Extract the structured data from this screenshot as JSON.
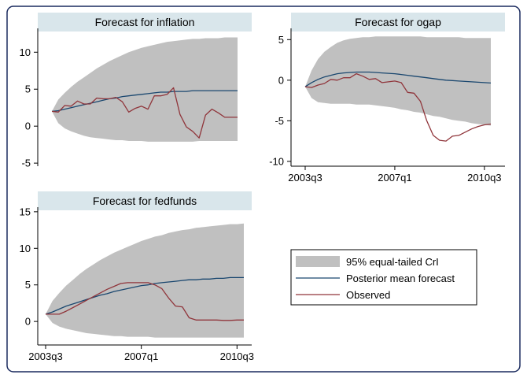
{
  "colors": {
    "frame": "#1a2a5e",
    "band": "#c0c0c0",
    "mean": "#1a476f",
    "observed": "#90353b",
    "title_bg": "#d9e6eb"
  },
  "chart_data": [
    {
      "type": "area",
      "title": "Forecast for inflation",
      "xlabel": "",
      "ylabel": "",
      "grid": false,
      "x_ticks": [],
      "y_ticks": [
        "10",
        "5",
        "0",
        "-5"
      ],
      "ylim": [
        -5.2,
        12.8
      ],
      "x": [
        "2003q3",
        "2003q4",
        "2004q1",
        "2004q2",
        "2004q3",
        "2004q4",
        "2005q1",
        "2005q2",
        "2005q3",
        "2005q4",
        "2006q1",
        "2006q2",
        "2006q3",
        "2006q4",
        "2007q1",
        "2007q2",
        "2007q3",
        "2007q4",
        "2008q1",
        "2008q2",
        "2008q3",
        "2008q4",
        "2009q1",
        "2009q2",
        "2009q3",
        "2009q4",
        "2010q1",
        "2010q2",
        "2010q3",
        "2010q4"
      ],
      "series": [
        {
          "name": "95% equal-tailed CrI",
          "type": "band",
          "lower": [
            2.0,
            0.4,
            -0.3,
            -0.7,
            -1.0,
            -1.3,
            -1.5,
            -1.6,
            -1.7,
            -1.8,
            -1.9,
            -1.9,
            -2.0,
            -2.0,
            -2.0,
            -2.1,
            -2.1,
            -2.1,
            -2.1,
            -2.1,
            -2.1,
            -2.1,
            -2.1,
            -2.0,
            -2.0,
            -2.0,
            -2.0,
            -2.0,
            -2.0,
            -2.0
          ],
          "upper": [
            2.0,
            3.6,
            4.5,
            5.3,
            6.0,
            6.6,
            7.2,
            7.8,
            8.3,
            8.8,
            9.2,
            9.6,
            10.0,
            10.3,
            10.6,
            10.8,
            11.0,
            11.2,
            11.4,
            11.5,
            11.6,
            11.7,
            11.8,
            11.8,
            11.9,
            11.9,
            11.9,
            12.0,
            12.0,
            12.0
          ]
        },
        {
          "name": "Posterior mean forecast",
          "type": "line",
          "values": [
            2.0,
            2.1,
            2.3,
            2.5,
            2.7,
            2.9,
            3.1,
            3.3,
            3.5,
            3.7,
            3.8,
            4.0,
            4.1,
            4.2,
            4.3,
            4.4,
            4.5,
            4.6,
            4.6,
            4.7,
            4.7,
            4.7,
            4.8,
            4.8,
            4.8,
            4.8,
            4.8,
            4.8,
            4.8,
            4.8
          ]
        },
        {
          "name": "Observed",
          "type": "line",
          "values": [
            2.0,
            1.9,
            2.8,
            2.7,
            3.4,
            3.0,
            3.0,
            3.8,
            3.7,
            3.7,
            3.9,
            3.3,
            1.9,
            2.4,
            2.7,
            2.3,
            4.1,
            4.1,
            4.3,
            5.2,
            1.6,
            -0.1,
            -0.7,
            -1.6,
            1.5,
            2.3,
            1.8,
            1.2,
            1.2,
            1.2
          ]
        }
      ]
    },
    {
      "type": "area",
      "title": "Forecast for ogap",
      "xlabel": "",
      "ylabel": "",
      "grid": false,
      "x_ticks": [
        "2003q3",
        "2007q1",
        "2010q3"
      ],
      "y_ticks": [
        "5",
        "0",
        "-5",
        "-10"
      ],
      "ylim": [
        -10.4,
        6.0
      ],
      "x": [
        "2003q3",
        "2003q4",
        "2004q1",
        "2004q2",
        "2004q3",
        "2004q4",
        "2005q1",
        "2005q2",
        "2005q3",
        "2005q4",
        "2006q1",
        "2006q2",
        "2006q3",
        "2006q4",
        "2007q1",
        "2007q2",
        "2007q3",
        "2007q4",
        "2008q1",
        "2008q2",
        "2008q3",
        "2008q4",
        "2009q1",
        "2009q2",
        "2009q3",
        "2009q4",
        "2010q1",
        "2010q2",
        "2010q3",
        "2010q4"
      ],
      "series": [
        {
          "name": "95% equal-tailed CrI",
          "type": "band",
          "lower": [
            -0.8,
            -2.2,
            -2.7,
            -2.8,
            -2.9,
            -2.9,
            -2.9,
            -2.9,
            -3.0,
            -3.0,
            -3.0,
            -3.1,
            -3.2,
            -3.3,
            -3.4,
            -3.6,
            -3.7,
            -3.9,
            -4.0,
            -4.2,
            -4.4,
            -4.5,
            -4.7,
            -4.9,
            -5.0,
            -5.1,
            -5.3,
            -5.4,
            -5.5,
            -5.6
          ],
          "upper": [
            -0.8,
            1.2,
            2.6,
            3.5,
            4.1,
            4.6,
            4.9,
            5.1,
            5.2,
            5.3,
            5.3,
            5.4,
            5.4,
            5.4,
            5.4,
            5.4,
            5.4,
            5.4,
            5.4,
            5.3,
            5.3,
            5.3,
            5.3,
            5.3,
            5.3,
            5.2,
            5.2,
            5.2,
            5.2,
            5.2
          ]
        },
        {
          "name": "Posterior mean forecast",
          "type": "line",
          "values": [
            -0.8,
            -0.3,
            0.1,
            0.4,
            0.6,
            0.8,
            0.9,
            0.95,
            1.0,
            1.0,
            1.0,
            0.95,
            0.9,
            0.85,
            0.8,
            0.7,
            0.6,
            0.5,
            0.4,
            0.3,
            0.2,
            0.1,
            0.0,
            -0.05,
            -0.1,
            -0.15,
            -0.2,
            -0.25,
            -0.3,
            -0.35
          ]
        },
        {
          "name": "Observed",
          "type": "line",
          "values": [
            -0.8,
            -0.9,
            -0.6,
            -0.4,
            0.1,
            0.0,
            0.3,
            0.3,
            0.8,
            0.5,
            0.1,
            0.2,
            -0.3,
            -0.2,
            -0.1,
            -0.3,
            -1.5,
            -1.6,
            -2.6,
            -5.0,
            -6.8,
            -7.4,
            -7.5,
            -6.9,
            -6.8,
            -6.4,
            -6.0,
            -5.7,
            -5.5,
            -5.4
          ]
        }
      ]
    },
    {
      "type": "area",
      "title": "Forecast for fedfunds",
      "xlabel": "",
      "ylabel": "",
      "grid": false,
      "x_ticks": [
        "2003q3",
        "2007q1",
        "2010q3"
      ],
      "y_ticks": [
        "15",
        "10",
        "5",
        "0"
      ],
      "ylim": [
        -3.0,
        15.2
      ],
      "x": [
        "2003q3",
        "2003q4",
        "2004q1",
        "2004q2",
        "2004q3",
        "2004q4",
        "2005q1",
        "2005q2",
        "2005q3",
        "2005q4",
        "2006q1",
        "2006q2",
        "2006q3",
        "2006q4",
        "2007q1",
        "2007q2",
        "2007q3",
        "2007q4",
        "2008q1",
        "2008q2",
        "2008q3",
        "2008q4",
        "2009q1",
        "2009q2",
        "2009q3",
        "2009q4",
        "2010q1",
        "2010q2",
        "2010q3",
        "2010q4"
      ],
      "series": [
        {
          "name": "95% equal-tailed CrI",
          "type": "band",
          "lower": [
            1.0,
            -0.2,
            -0.7,
            -1.0,
            -1.2,
            -1.4,
            -1.6,
            -1.7,
            -1.8,
            -1.9,
            -2.0,
            -2.0,
            -2.1,
            -2.1,
            -2.1,
            -2.1,
            -2.2,
            -2.2,
            -2.2,
            -2.2,
            -2.2,
            -2.2,
            -2.2,
            -2.2,
            -2.2,
            -2.2,
            -2.2,
            -2.2,
            -2.2,
            -2.2
          ],
          "upper": [
            1.0,
            2.8,
            3.9,
            4.9,
            5.7,
            6.5,
            7.2,
            7.8,
            8.4,
            8.9,
            9.4,
            9.8,
            10.2,
            10.6,
            11.0,
            11.3,
            11.6,
            11.8,
            12.1,
            12.3,
            12.5,
            12.6,
            12.8,
            12.9,
            13.0,
            13.1,
            13.2,
            13.3,
            13.3,
            13.4
          ]
        },
        {
          "name": "Posterior mean forecast",
          "type": "line",
          "values": [
            1.0,
            1.3,
            1.7,
            2.1,
            2.4,
            2.7,
            3.0,
            3.3,
            3.6,
            3.8,
            4.1,
            4.3,
            4.5,
            4.7,
            4.9,
            5.0,
            5.2,
            5.3,
            5.4,
            5.5,
            5.6,
            5.7,
            5.7,
            5.8,
            5.8,
            5.9,
            5.9,
            6.0,
            6.0,
            6.0
          ]
        },
        {
          "name": "Observed",
          "type": "line",
          "values": [
            1.0,
            1.0,
            1.0,
            1.4,
            1.9,
            2.4,
            2.9,
            3.4,
            3.9,
            4.4,
            4.8,
            5.2,
            5.3,
            5.3,
            5.3,
            5.3,
            5.0,
            4.5,
            3.2,
            2.1,
            2.0,
            0.5,
            0.2,
            0.2,
            0.2,
            0.2,
            0.15,
            0.15,
            0.2,
            0.2
          ]
        }
      ]
    }
  ],
  "legend": {
    "items": [
      {
        "label": "95% equal-tailed CrI",
        "kind": "band"
      },
      {
        "label": "Posterior mean forecast",
        "kind": "mean"
      },
      {
        "label": "Observed",
        "kind": "observed"
      }
    ]
  }
}
